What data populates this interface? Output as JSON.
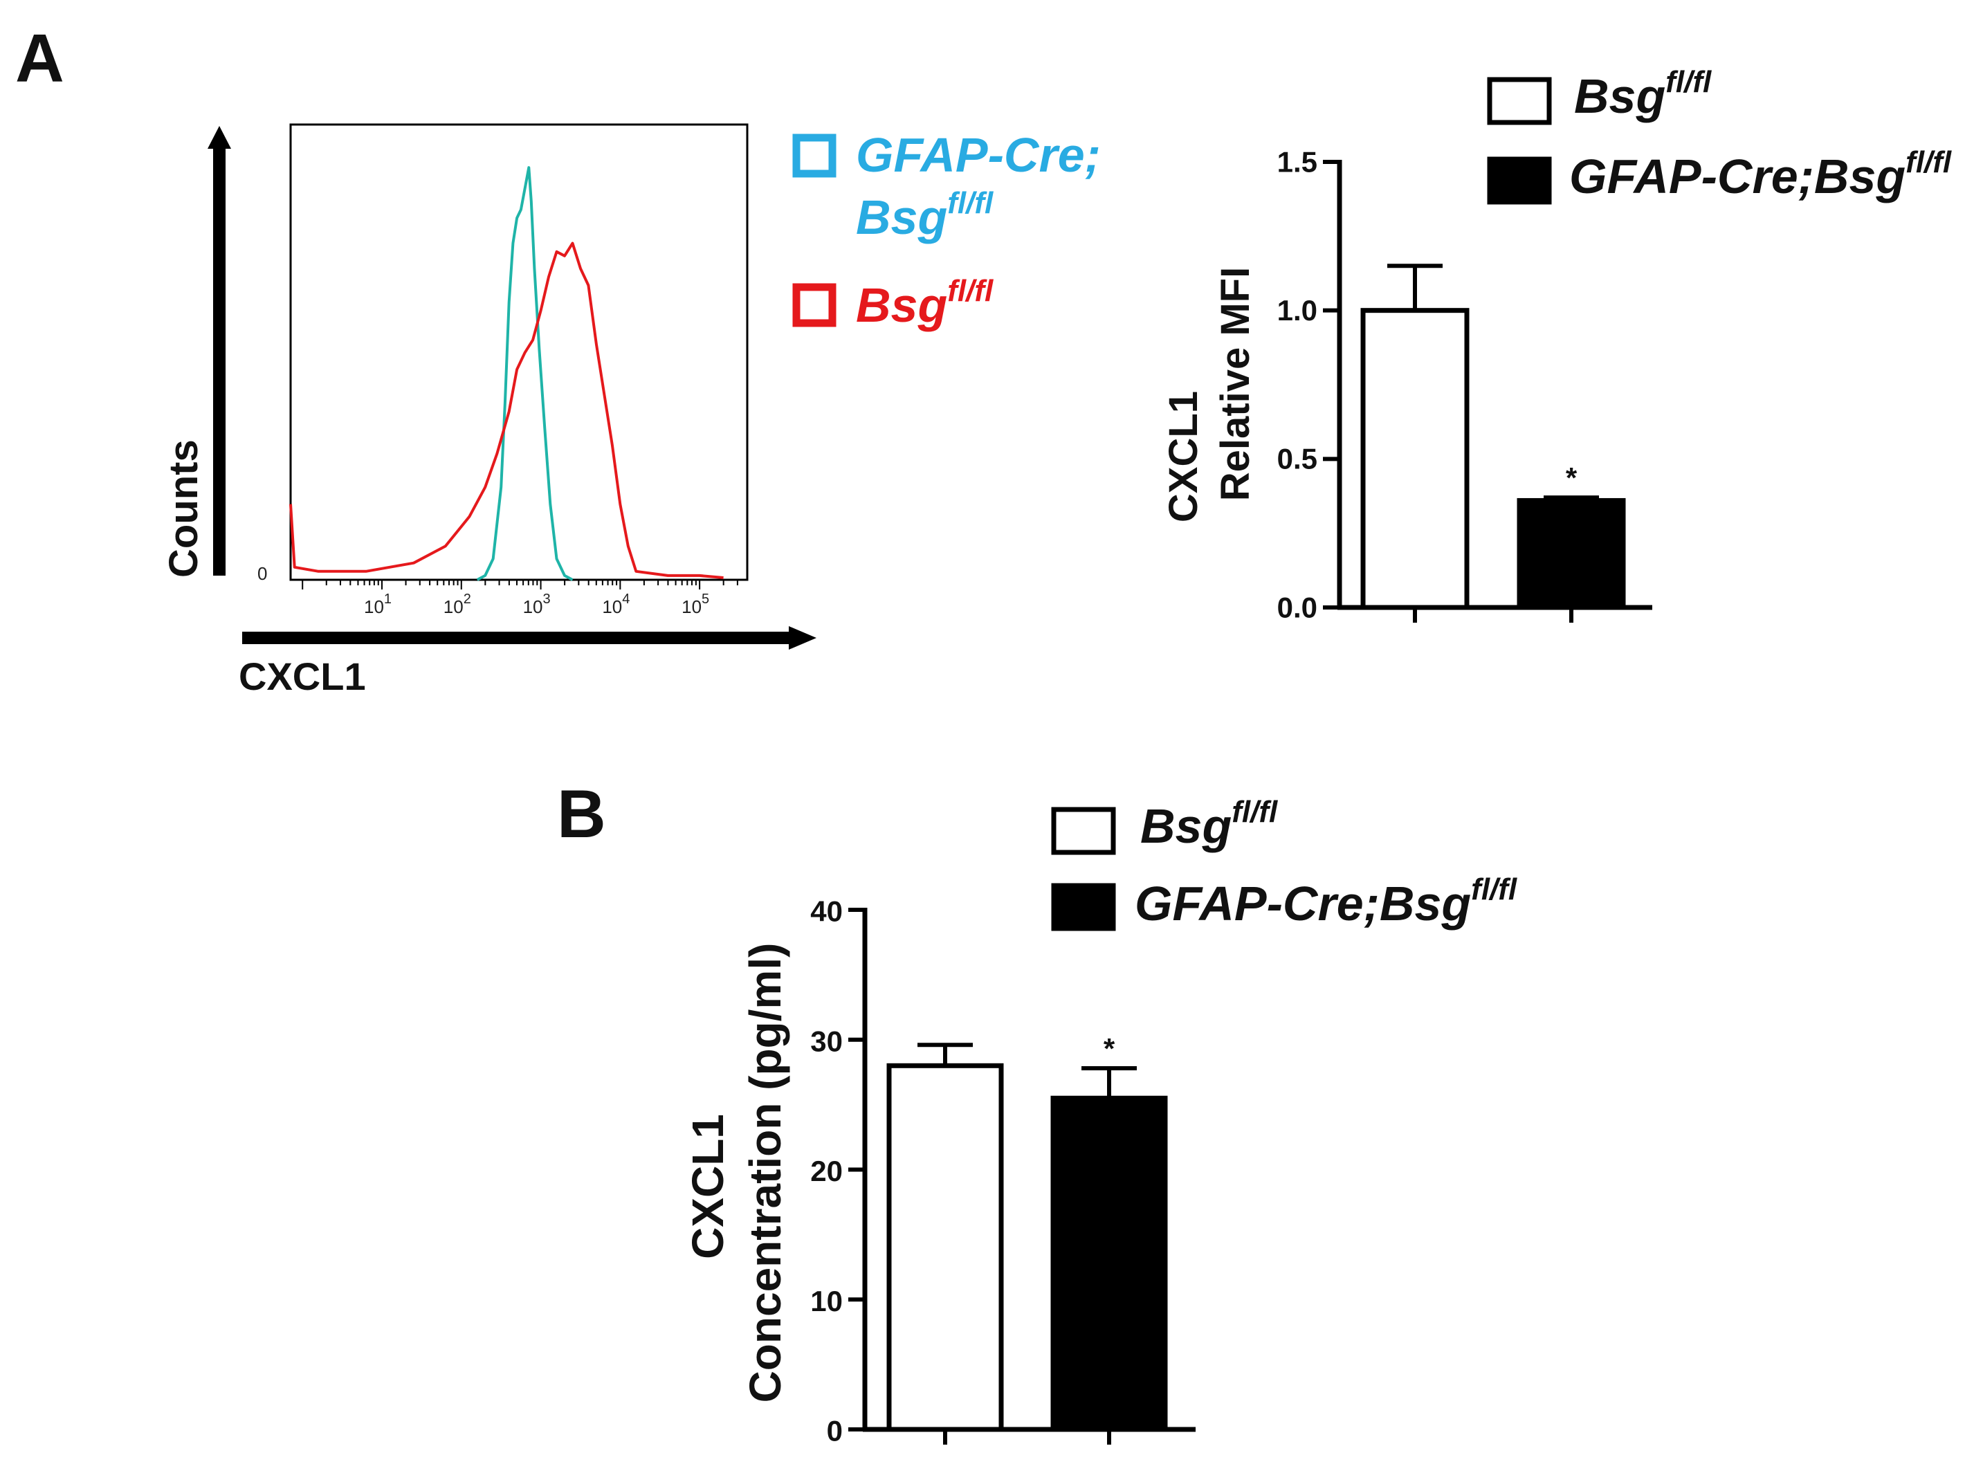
{
  "panels": [
    {
      "label": "A"
    },
    {
      "label": "B"
    }
  ],
  "chart_data": [
    {
      "type": "line",
      "title": "",
      "xlabel": "CXCL1",
      "ylabel": "Counts",
      "x_scale": "log",
      "x_ticks": [
        {
          "base": "10",
          "exp": "1"
        },
        {
          "base": "10",
          "exp": "2"
        },
        {
          "base": "10",
          "exp": "3"
        },
        {
          "base": "10",
          "exp": "4"
        },
        {
          "base": "10",
          "exp": "5"
        }
      ],
      "y_tick": "0",
      "legend": [
        {
          "name_main": "GFAP-Cre;",
          "name_line2": "Bsg",
          "sup": "fl/fl",
          "color": "#29abe2"
        },
        {
          "name_main": "Bsg",
          "sup": "fl/fl",
          "color": "#e5191c"
        }
      ],
      "series": [
        {
          "name": "GFAP-Cre;Bsg fl/fl",
          "color": "#1fb4a8",
          "points": [
            [
              2.2,
              0
            ],
            [
              2.3,
              0.01
            ],
            [
              2.4,
              0.05
            ],
            [
              2.5,
              0.22
            ],
            [
              2.55,
              0.42
            ],
            [
              2.6,
              0.66
            ],
            [
              2.65,
              0.8
            ],
            [
              2.7,
              0.86
            ],
            [
              2.75,
              0.88
            ],
            [
              2.8,
              0.93
            ],
            [
              2.85,
              0.98
            ],
            [
              2.88,
              0.9
            ],
            [
              2.92,
              0.74
            ],
            [
              2.98,
              0.55
            ],
            [
              3.05,
              0.36
            ],
            [
              3.12,
              0.18
            ],
            [
              3.2,
              0.05
            ],
            [
              3.3,
              0.01
            ],
            [
              3.4,
              0
            ]
          ]
        },
        {
          "name": "Bsg fl/fl",
          "color": "#e5191c",
          "points": [
            [
              -0.15,
              0.18
            ],
            [
              -0.1,
              0.03
            ],
            [
              0.2,
              0.02
            ],
            [
              0.8,
              0.02
            ],
            [
              1.4,
              0.04
            ],
            [
              1.8,
              0.08
            ],
            [
              2.1,
              0.15
            ],
            [
              2.3,
              0.22
            ],
            [
              2.45,
              0.3
            ],
            [
              2.6,
              0.4
            ],
            [
              2.7,
              0.5
            ],
            [
              2.8,
              0.54
            ],
            [
              2.9,
              0.57
            ],
            [
              3.0,
              0.64
            ],
            [
              3.1,
              0.72
            ],
            [
              3.2,
              0.78
            ],
            [
              3.3,
              0.77
            ],
            [
              3.4,
              0.8
            ],
            [
              3.5,
              0.74
            ],
            [
              3.6,
              0.7
            ],
            [
              3.7,
              0.56
            ],
            [
              3.8,
              0.44
            ],
            [
              3.9,
              0.32
            ],
            [
              4.0,
              0.18
            ],
            [
              4.1,
              0.08
            ],
            [
              4.2,
              0.02
            ],
            [
              4.6,
              0.01
            ],
            [
              5.0,
              0.01
            ],
            [
              5.3,
              0.005
            ]
          ]
        }
      ],
      "xlim": [
        -0.15,
        5.6
      ],
      "ylim": [
        0,
        1
      ]
    },
    {
      "type": "bar",
      "categories": [
        "Bsg fl/fl",
        "GFAP-Cre;Bsg fl/fl"
      ],
      "values": [
        1.0,
        0.36
      ],
      "errors": [
        0.15,
        0.01
      ],
      "ylabel_line1": "CXCL1",
      "ylabel_line2": "Relative MFI",
      "ylim": [
        0,
        1.5
      ],
      "yticks": [
        "0.0",
        "0.5",
        "1.0",
        "1.5"
      ],
      "significance": [
        null,
        "*"
      ],
      "legend": [
        {
          "name": "Bsg",
          "sup": "fl/fl",
          "fill": "#ffffff"
        },
        {
          "name": "GFAP-Cre;Bsg",
          "sup": "fl/fl",
          "fill": "#000000"
        }
      ]
    },
    {
      "type": "bar",
      "categories": [
        "Bsg fl/fl",
        "GFAP-Cre;Bsg fl/fl"
      ],
      "values": [
        28,
        25.5
      ],
      "errors": [
        1.6,
        2.3
      ],
      "ylabel_line1": "CXCL1",
      "ylabel_line2": "Concentration (pg/ml)",
      "ylim": [
        0,
        40
      ],
      "yticks": [
        "0",
        "10",
        "20",
        "30",
        "40"
      ],
      "significance": [
        null,
        "*"
      ],
      "legend": [
        {
          "name": "Bsg",
          "sup": "fl/fl",
          "fill": "#ffffff"
        },
        {
          "name": "GFAP-Cre;Bsg",
          "sup": "fl/fl",
          "fill": "#000000"
        }
      ]
    }
  ]
}
